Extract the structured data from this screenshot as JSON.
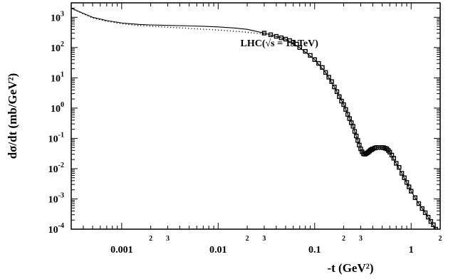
{
  "chart_data": {
    "type": "line",
    "title": "",
    "xlabel": "-t (GeV²)",
    "ylabel": "dσ/dt (mb/GeV²)",
    "x_scale": "log",
    "y_scale": "log",
    "xlim": [
      0.0003,
      2
    ],
    "ylim": [
      0.0001,
      3000
    ],
    "grid": false,
    "x_ticks": [
      {
        "value": 0.001,
        "label": "0.001"
      },
      {
        "value": 0.01,
        "label": "0.01"
      },
      {
        "value": 0.1,
        "label": "0.1"
      },
      {
        "value": 1,
        "label": "1"
      }
    ],
    "x_minor_labels": [
      {
        "value": 0.002,
        "label": "2"
      },
      {
        "value": 0.003,
        "label": "3"
      },
      {
        "value": 0.02,
        "label": "2"
      },
      {
        "value": 0.03,
        "label": "3"
      },
      {
        "value": 0.2,
        "label": "2"
      },
      {
        "value": 0.3,
        "label": "3"
      },
      {
        "value": 2,
        "label": "2"
      }
    ],
    "y_ticks": [
      {
        "value": 1000,
        "base": "10",
        "exp": "3"
      },
      {
        "value": 100,
        "base": "10",
        "exp": "2"
      },
      {
        "value": 10,
        "base": "10",
        "exp": "1"
      },
      {
        "value": 1,
        "base": "10",
        "exp": "0"
      },
      {
        "value": 0.1,
        "base": "10",
        "exp": "-1"
      },
      {
        "value": 0.01,
        "base": "10",
        "exp": "-2"
      },
      {
        "value": 0.001,
        "base": "10",
        "exp": "-3"
      },
      {
        "value": 0.0001,
        "base": "10",
        "exp": "-4"
      }
    ],
    "annotation": "LHC(√s = 13 TeV)",
    "annotation_at": {
      "x": 0.017,
      "y": 110
    },
    "series": [
      {
        "style": "solid",
        "x": [
          0.0003,
          0.0004,
          0.0005,
          0.0007,
          0.001,
          0.0015,
          0.002,
          0.003,
          0.005,
          0.007,
          0.01,
          0.015,
          0.02,
          0.03,
          0.05,
          0.07,
          0.1,
          0.13,
          0.16,
          0.2,
          0.25,
          0.3,
          0.33,
          0.36,
          0.4,
          0.45,
          0.5,
          0.55,
          0.6,
          0.7,
          0.8,
          0.9,
          1.0,
          1.2,
          1.4,
          1.6,
          1.8,
          2.0
        ],
        "y": [
          2000,
          1350,
          1000,
          780,
          650,
          580,
          560,
          540,
          520,
          505,
          480,
          440,
          400,
          300,
          190,
          100,
          40,
          15,
          5,
          1.3,
          0.25,
          0.045,
          0.03,
          0.035,
          0.045,
          0.05,
          0.05,
          0.045,
          0.035,
          0.015,
          0.007,
          0.0035,
          0.0018,
          0.0007,
          0.00035,
          0.00018,
          0.0001,
          6e-05
        ]
      },
      {
        "style": "dotted",
        "x": [
          0.0003,
          0.0004,
          0.0005,
          0.0007,
          0.001,
          0.0015,
          0.002,
          0.003,
          0.005,
          0.007,
          0.01,
          0.015,
          0.02,
          0.03
        ],
        "y": [
          1950,
          1300,
          950,
          740,
          610,
          540,
          510,
          470,
          430,
          405,
          380,
          345,
          320,
          280
        ]
      }
    ],
    "data_points": {
      "x": [
        0.03,
        0.035,
        0.04,
        0.045,
        0.05,
        0.055,
        0.06,
        0.065,
        0.07,
        0.08,
        0.09,
        0.1,
        0.11,
        0.12,
        0.13,
        0.14,
        0.15,
        0.16,
        0.17,
        0.18,
        0.19,
        0.2,
        0.21,
        0.22,
        0.23,
        0.24,
        0.25,
        0.26,
        0.27,
        0.28,
        0.29,
        0.3,
        0.31,
        0.32,
        0.33,
        0.34,
        0.35,
        0.36,
        0.37,
        0.38,
        0.39,
        0.4,
        0.42,
        0.44,
        0.46,
        0.48,
        0.5,
        0.52,
        0.54,
        0.56,
        0.58,
        0.6,
        0.63,
        0.66,
        0.7,
        0.75,
        0.8,
        0.85,
        0.9,
        0.95,
        1.0,
        1.1,
        1.2,
        1.3,
        1.4,
        1.5,
        1.6,
        1.7,
        1.8,
        1.9
      ],
      "y": [
        300,
        265,
        235,
        210,
        190,
        170,
        150,
        130,
        100,
        75,
        55,
        40,
        30,
        22,
        15,
        10.5,
        7.5,
        5,
        3.5,
        2.4,
        1.7,
        1.3,
        0.9,
        0.62,
        0.45,
        0.33,
        0.25,
        0.17,
        0.12,
        0.085,
        0.06,
        0.045,
        0.036,
        0.031,
        0.03,
        0.031,
        0.033,
        0.035,
        0.038,
        0.041,
        0.043,
        0.045,
        0.048,
        0.05,
        0.05,
        0.05,
        0.05,
        0.049,
        0.047,
        0.045,
        0.04,
        0.035,
        0.028,
        0.022,
        0.015,
        0.011,
        0.007,
        0.005,
        0.0035,
        0.0025,
        0.0018,
        0.0011,
        0.0007,
        0.00048,
        0.00035,
        0.00025,
        0.00018,
        0.00014,
        0.0001,
        7.8e-05
      ]
    }
  }
}
